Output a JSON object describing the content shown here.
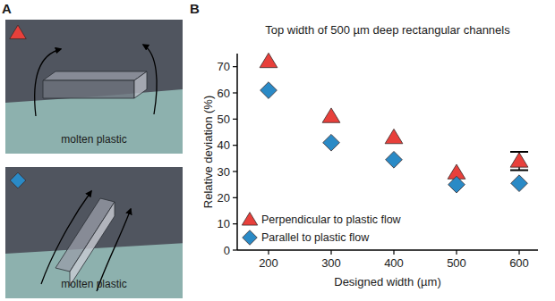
{
  "diagram": {
    "letter": "A",
    "panels": [
      {
        "label": "molten plastic"
      },
      {
        "label": "molten plastic"
      }
    ]
  },
  "chart_data": {
    "letter": "B",
    "type": "scatter",
    "title": "Top width of 500 µm deep rectangular channels",
    "x_label": "Designed width (µm)",
    "y_label": "Relative deviation (%)",
    "x": [
      200,
      300,
      400,
      500,
      600
    ],
    "series": [
      {
        "name": "Perpendicular to plastic flow",
        "color": "#e8403b",
        "marker": "triangle",
        "values": [
          72,
          51,
          43,
          29.5,
          34
        ],
        "errors": [
          null,
          null,
          null,
          null,
          3.5
        ]
      },
      {
        "name": "Parallel to plastic flow",
        "color": "#2a8ac6",
        "marker": "diamond",
        "values": [
          61,
          41,
          34.5,
          25,
          25.5
        ]
      }
    ],
    "xlim": [
      150,
      630
    ],
    "xticks": [
      200,
      300,
      400,
      500,
      600
    ],
    "ylim": [
      0,
      75
    ],
    "yticks": [
      0,
      10,
      20,
      30,
      40,
      50,
      60,
      70
    ],
    "grid": false,
    "legend": "lower left"
  }
}
